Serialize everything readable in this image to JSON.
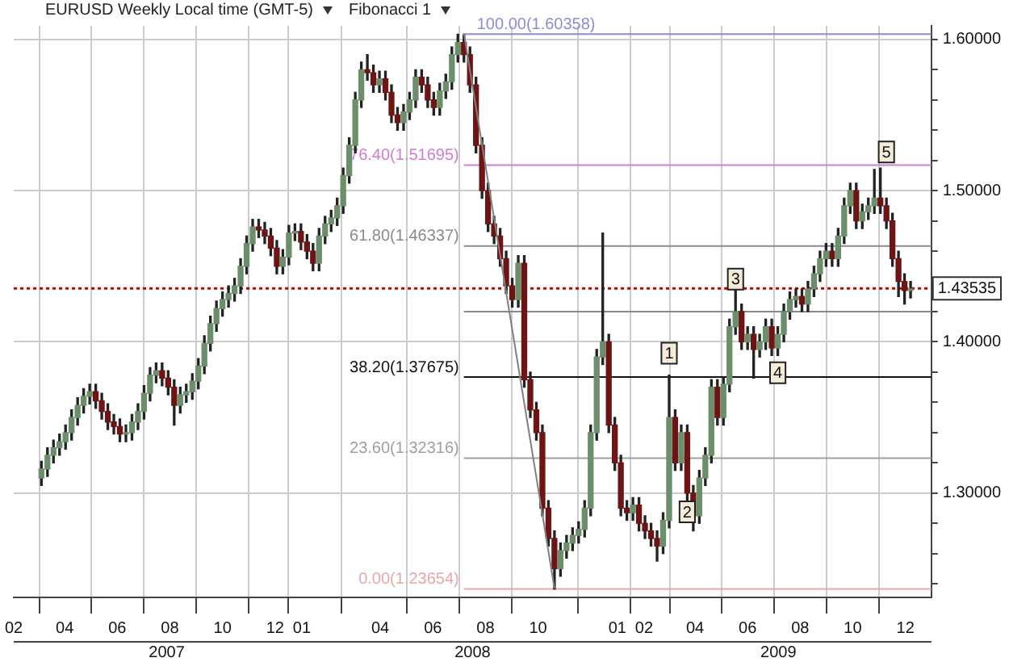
{
  "chart_data": {
    "type": "candlestick",
    "title": "EURUSD Weekly Local time (GMT-5)",
    "subtitle": "Fibonacci 1",
    "x": [
      "2007-03-05",
      "2007-03-12",
      "2007-03-19",
      "2007-03-26",
      "2007-04-02",
      "2007-04-09",
      "2007-04-16",
      "2007-04-23",
      "2007-04-30",
      "2007-05-07",
      "2007-05-14",
      "2007-05-21",
      "2007-05-28",
      "2007-06-04",
      "2007-06-11",
      "2007-06-18",
      "2007-06-25",
      "2007-07-02",
      "2007-07-09",
      "2007-07-16",
      "2007-07-23",
      "2007-07-30",
      "2007-08-06",
      "2007-08-13",
      "2007-08-20",
      "2007-08-27",
      "2007-09-03",
      "2007-09-10",
      "2007-09-17",
      "2007-09-24",
      "2007-10-01",
      "2007-10-08",
      "2007-10-15",
      "2007-10-22",
      "2007-10-29",
      "2007-11-05",
      "2007-11-12",
      "2007-11-19",
      "2007-11-26",
      "2007-12-03",
      "2007-12-10",
      "2007-12-17",
      "2007-12-24",
      "2007-12-31",
      "2008-01-07",
      "2008-01-14",
      "2008-01-21",
      "2008-01-28",
      "2008-02-04",
      "2008-02-11",
      "2008-02-18",
      "2008-02-25",
      "2008-03-03",
      "2008-03-10",
      "2008-03-17",
      "2008-03-24",
      "2008-03-31",
      "2008-04-07",
      "2008-04-14",
      "2008-04-21",
      "2008-04-28",
      "2008-05-05",
      "2008-05-12",
      "2008-05-19",
      "2008-05-26",
      "2008-06-02",
      "2008-06-09",
      "2008-06-16",
      "2008-06-23",
      "2008-06-30",
      "2008-07-07",
      "2008-07-14",
      "2008-07-21",
      "2008-07-28",
      "2008-08-04",
      "2008-08-11",
      "2008-08-18",
      "2008-08-25",
      "2008-09-01",
      "2008-09-08",
      "2008-09-15",
      "2008-09-22",
      "2008-09-29",
      "2008-10-06",
      "2008-10-13",
      "2008-10-20",
      "2008-10-27",
      "2008-11-03",
      "2008-11-10",
      "2008-11-17",
      "2008-11-24",
      "2008-12-01",
      "2008-12-08",
      "2008-12-15",
      "2008-12-22",
      "2008-12-29",
      "2009-01-05",
      "2009-01-12",
      "2009-01-19",
      "2009-01-26",
      "2009-02-02",
      "2009-02-09",
      "2009-02-16",
      "2009-02-23",
      "2009-03-02",
      "2009-03-09",
      "2009-03-16",
      "2009-03-23",
      "2009-03-30",
      "2009-04-06",
      "2009-04-13",
      "2009-04-20",
      "2009-04-27",
      "2009-05-04",
      "2009-05-11",
      "2009-05-18",
      "2009-05-25",
      "2009-06-01",
      "2009-06-08",
      "2009-06-15",
      "2009-06-22",
      "2009-06-29",
      "2009-07-06",
      "2009-07-13",
      "2009-07-20",
      "2009-07-27",
      "2009-08-03",
      "2009-08-10",
      "2009-08-17",
      "2009-08-24",
      "2009-08-31",
      "2009-09-07",
      "2009-09-14",
      "2009-09-21",
      "2009-09-28",
      "2009-10-05",
      "2009-10-12",
      "2009-10-19",
      "2009-10-26",
      "2009-11-02",
      "2009-11-09",
      "2009-11-16",
      "2009-11-23",
      "2009-11-30",
      "2009-12-07"
    ],
    "ohlc": [
      [
        1.31,
        1.321,
        1.305,
        1.316
      ],
      [
        1.316,
        1.33,
        1.311,
        1.325
      ],
      [
        1.325,
        1.335,
        1.32,
        1.33
      ],
      [
        1.33,
        1.339,
        1.325,
        1.334
      ],
      [
        1.334,
        1.345,
        1.329,
        1.34
      ],
      [
        1.34,
        1.355,
        1.335,
        1.35
      ],
      [
        1.35,
        1.363,
        1.345,
        1.358
      ],
      [
        1.358,
        1.369,
        1.353,
        1.364
      ],
      [
        1.364,
        1.372,
        1.359,
        1.367
      ],
      [
        1.367,
        1.372,
        1.356,
        1.361
      ],
      [
        1.361,
        1.366,
        1.349,
        1.354
      ],
      [
        1.354,
        1.359,
        1.342,
        1.347
      ],
      [
        1.347,
        1.352,
        1.339,
        1.344
      ],
      [
        1.344,
        1.349,
        1.334,
        1.339
      ],
      [
        1.339,
        1.345,
        1.334,
        1.34
      ],
      [
        1.34,
        1.352,
        1.335,
        1.347
      ],
      [
        1.347,
        1.359,
        1.342,
        1.354
      ],
      [
        1.354,
        1.371,
        1.349,
        1.366
      ],
      [
        1.366,
        1.383,
        1.361,
        1.378
      ],
      [
        1.378,
        1.386,
        1.373,
        1.381
      ],
      [
        1.381,
        1.386,
        1.371,
        1.376
      ],
      [
        1.376,
        1.381,
        1.365,
        1.37
      ],
      [
        1.37,
        1.375,
        1.345,
        1.358
      ],
      [
        1.358,
        1.37,
        1.353,
        1.365
      ],
      [
        1.365,
        1.372,
        1.36,
        1.367
      ],
      [
        1.367,
        1.379,
        1.362,
        1.374
      ],
      [
        1.374,
        1.389,
        1.369,
        1.384
      ],
      [
        1.384,
        1.404,
        1.379,
        1.399
      ],
      [
        1.399,
        1.417,
        1.394,
        1.412
      ],
      [
        1.412,
        1.427,
        1.407,
        1.422
      ],
      [
        1.422,
        1.433,
        1.417,
        1.428
      ],
      [
        1.428,
        1.437,
        1.423,
        1.432
      ],
      [
        1.432,
        1.442,
        1.427,
        1.437
      ],
      [
        1.437,
        1.455,
        1.432,
        1.45
      ],
      [
        1.45,
        1.47,
        1.445,
        1.465
      ],
      [
        1.465,
        1.481,
        1.46,
        1.476
      ],
      [
        1.476,
        1.481,
        1.469,
        1.474
      ],
      [
        1.474,
        1.479,
        1.465,
        1.47
      ],
      [
        1.47,
        1.475,
        1.457,
        1.462
      ],
      [
        1.462,
        1.467,
        1.445,
        1.45
      ],
      [
        1.45,
        1.461,
        1.445,
        1.456
      ],
      [
        1.456,
        1.477,
        1.451,
        1.472
      ],
      [
        1.472,
        1.478,
        1.467,
        1.473
      ],
      [
        1.473,
        1.478,
        1.461,
        1.466
      ],
      [
        1.466,
        1.471,
        1.455,
        1.46
      ],
      [
        1.46,
        1.465,
        1.447,
        1.452
      ],
      [
        1.452,
        1.475,
        1.447,
        1.47
      ],
      [
        1.47,
        1.483,
        1.465,
        1.478
      ],
      [
        1.478,
        1.487,
        1.473,
        1.482
      ],
      [
        1.482,
        1.495,
        1.477,
        1.49
      ],
      [
        1.49,
        1.515,
        1.485,
        1.51
      ],
      [
        1.51,
        1.535,
        1.505,
        1.53
      ],
      [
        1.53,
        1.565,
        1.525,
        1.56
      ],
      [
        1.56,
        1.585,
        1.555,
        1.58
      ],
      [
        1.58,
        1.59,
        1.573,
        1.578
      ],
      [
        1.578,
        1.583,
        1.565,
        1.57
      ],
      [
        1.57,
        1.579,
        1.565,
        1.574
      ],
      [
        1.574,
        1.579,
        1.56,
        1.565
      ],
      [
        1.565,
        1.57,
        1.545,
        1.55
      ],
      [
        1.55,
        1.555,
        1.54,
        1.545
      ],
      [
        1.545,
        1.557,
        1.54,
        1.552
      ],
      [
        1.552,
        1.565,
        1.547,
        1.56
      ],
      [
        1.56,
        1.58,
        1.555,
        1.575
      ],
      [
        1.575,
        1.58,
        1.565,
        1.57
      ],
      [
        1.57,
        1.575,
        1.555,
        1.56
      ],
      [
        1.56,
        1.565,
        1.55,
        1.555
      ],
      [
        1.555,
        1.571,
        1.55,
        1.566
      ],
      [
        1.566,
        1.577,
        1.561,
        1.572
      ],
      [
        1.572,
        1.595,
        1.567,
        1.59
      ],
      [
        1.59,
        1.6035,
        1.585,
        1.598
      ],
      [
        1.598,
        1.603,
        1.585,
        1.59
      ],
      [
        1.59,
        1.595,
        1.565,
        1.57
      ],
      [
        1.57,
        1.575,
        1.525,
        1.53
      ],
      [
        1.53,
        1.535,
        1.495,
        1.5
      ],
      [
        1.5,
        1.505,
        1.473,
        1.478
      ],
      [
        1.478,
        1.483,
        1.465,
        1.47
      ],
      [
        1.47,
        1.475,
        1.45,
        1.455
      ],
      [
        1.455,
        1.46,
        1.432,
        1.437
      ],
      [
        1.437,
        1.442,
        1.423,
        1.428
      ],
      [
        1.428,
        1.457,
        1.423,
        1.452
      ],
      [
        1.452,
        1.457,
        1.37,
        1.375
      ],
      [
        1.375,
        1.38,
        1.35,
        1.355
      ],
      [
        1.355,
        1.36,
        1.335,
        1.34
      ],
      [
        1.34,
        1.345,
        1.285,
        1.29
      ],
      [
        1.29,
        1.295,
        1.265,
        1.27
      ],
      [
        1.27,
        1.275,
        1.2365,
        1.25
      ],
      [
        1.25,
        1.267,
        1.245,
        1.262
      ],
      [
        1.262,
        1.272,
        1.257,
        1.267
      ],
      [
        1.267,
        1.277,
        1.262,
        1.272
      ],
      [
        1.272,
        1.281,
        1.267,
        1.276
      ],
      [
        1.276,
        1.295,
        1.271,
        1.29
      ],
      [
        1.29,
        1.345,
        1.285,
        1.34
      ],
      [
        1.34,
        1.395,
        1.335,
        1.39
      ],
      [
        1.39,
        1.472,
        1.385,
        1.4
      ],
      [
        1.4,
        1.405,
        1.34,
        1.345
      ],
      [
        1.345,
        1.35,
        1.315,
        1.32
      ],
      [
        1.32,
        1.325,
        1.285,
        1.29
      ],
      [
        1.29,
        1.295,
        1.282,
        1.287
      ],
      [
        1.287,
        1.297,
        1.282,
        1.292
      ],
      [
        1.292,
        1.297,
        1.275,
        1.28
      ],
      [
        1.28,
        1.285,
        1.27,
        1.275
      ],
      [
        1.275,
        1.28,
        1.265,
        1.27
      ],
      [
        1.27,
        1.275,
        1.255,
        1.265
      ],
      [
        1.265,
        1.287,
        1.26,
        1.282
      ],
      [
        1.282,
        1.378,
        1.277,
        1.35
      ],
      [
        1.35,
        1.355,
        1.315,
        1.32
      ],
      [
        1.32,
        1.345,
        1.315,
        1.34
      ],
      [
        1.34,
        1.345,
        1.295,
        1.3
      ],
      [
        1.3,
        1.305,
        1.275,
        1.285
      ],
      [
        1.285,
        1.315,
        1.28,
        1.31
      ],
      [
        1.31,
        1.33,
        1.305,
        1.325
      ],
      [
        1.325,
        1.375,
        1.32,
        1.37
      ],
      [
        1.37,
        1.375,
        1.345,
        1.35
      ],
      [
        1.35,
        1.377,
        1.345,
        1.372
      ],
      [
        1.372,
        1.415,
        1.367,
        1.41
      ],
      [
        1.41,
        1.436,
        1.405,
        1.42
      ],
      [
        1.42,
        1.425,
        1.395,
        1.4
      ],
      [
        1.4,
        1.41,
        1.395,
        1.405
      ],
      [
        1.405,
        1.41,
        1.376,
        1.395
      ],
      [
        1.395,
        1.405,
        1.39,
        1.4
      ],
      [
        1.4,
        1.415,
        1.395,
        1.41
      ],
      [
        1.41,
        1.415,
        1.391,
        1.396
      ],
      [
        1.396,
        1.41,
        1.391,
        1.405
      ],
      [
        1.405,
        1.425,
        1.4,
        1.42
      ],
      [
        1.42,
        1.433,
        1.415,
        1.428
      ],
      [
        1.428,
        1.435,
        1.423,
        1.43
      ],
      [
        1.43,
        1.435,
        1.42,
        1.425
      ],
      [
        1.425,
        1.44,
        1.42,
        1.435
      ],
      [
        1.435,
        1.45,
        1.43,
        1.445
      ],
      [
        1.445,
        1.46,
        1.44,
        1.455
      ],
      [
        1.455,
        1.465,
        1.45,
        1.46
      ],
      [
        1.46,
        1.465,
        1.45,
        1.455
      ],
      [
        1.455,
        1.475,
        1.45,
        1.47
      ],
      [
        1.47,
        1.495,
        1.465,
        1.49
      ],
      [
        1.49,
        1.505,
        1.485,
        1.5
      ],
      [
        1.5,
        1.505,
        1.475,
        1.48
      ],
      [
        1.48,
        1.491,
        1.475,
        1.486
      ],
      [
        1.486,
        1.495,
        1.481,
        1.49
      ],
      [
        1.49,
        1.514,
        1.485,
        1.495
      ],
      [
        1.495,
        1.515,
        1.485,
        1.49
      ],
      [
        1.49,
        1.495,
        1.475,
        1.48
      ],
      [
        1.48,
        1.485,
        1.45,
        1.455
      ],
      [
        1.455,
        1.46,
        1.43,
        1.44
      ],
      [
        1.44,
        1.445,
        1.425,
        1.434
      ],
      [
        1.434,
        1.44,
        1.429,
        1.435
      ]
    ],
    "colors": [
      "#6b8f6b",
      "#6b8f6b",
      "#6b8f6b",
      "#6b8f6b",
      "#6b8f6b",
      "#6b8f6b",
      "#6b8f6b",
      "#6b8f6b",
      "#6b8f6b",
      "#6e1414",
      "#6e1414",
      "#6e1414",
      "#6e1414",
      "#6e1414",
      "#6b8f6b",
      "#6b8f6b",
      "#6b8f6b",
      "#6b8f6b",
      "#6b8f6b",
      "#6b8f6b",
      "#6e1414",
      "#6e1414",
      "#6e1414",
      "#6b8f6b",
      "#6b8f6b",
      "#6b8f6b",
      "#6b8f6b",
      "#6b8f6b",
      "#6b8f6b",
      "#6b8f6b",
      "#6b8f6b",
      "#6b8f6b",
      "#6b8f6b",
      "#6b8f6b",
      "#6b8f6b",
      "#6b8f6b",
      "#6e1414",
      "#6e1414",
      "#6e1414",
      "#6e1414",
      "#6b8f6b",
      "#6b8f6b",
      "#6b8f6b",
      "#6e1414",
      "#6e1414",
      "#6e1414",
      "#6b8f6b",
      "#6b8f6b",
      "#6b8f6b",
      "#6b8f6b",
      "#6b8f6b",
      "#6b8f6b",
      "#6b8f6b",
      "#6b8f6b",
      "#6e1414",
      "#6e1414",
      "#6b8f6b",
      "#6e1414",
      "#6e1414",
      "#6e1414",
      "#6b8f6b",
      "#6b8f6b",
      "#6b8f6b",
      "#6e1414",
      "#6e1414",
      "#6e1414",
      "#6b8f6b",
      "#6b8f6b",
      "#6b8f6b",
      "#6b8f6b",
      "#6e1414",
      "#6e1414",
      "#6e1414",
      "#6e1414",
      "#6e1414",
      "#6e1414",
      "#6e1414",
      "#6e1414",
      "#6e1414",
      "#6b8f6b",
      "#6e1414",
      "#6e1414",
      "#6e1414",
      "#6e1414",
      "#6e1414",
      "#6e1414",
      "#6b8f6b",
      "#6b8f6b",
      "#6b8f6b",
      "#6b8f6b",
      "#6b8f6b",
      "#6b8f6b",
      "#6b8f6b",
      "#6b8f6b",
      "#6e1414",
      "#6e1414",
      "#6e1414",
      "#6e1414",
      "#6b8f6b",
      "#6e1414",
      "#6e1414",
      "#6e1414",
      "#6e1414",
      "#6b8f6b",
      "#6b8f6b",
      "#6e1414",
      "#6b8f6b",
      "#6e1414",
      "#6e1414",
      "#6b8f6b",
      "#6b8f6b",
      "#6b8f6b",
      "#6e1414",
      "#6b8f6b",
      "#6b8f6b",
      "#6b8f6b",
      "#6e1414",
      "#6b8f6b",
      "#6e1414",
      "#6b8f6b",
      "#6b8f6b",
      "#6e1414",
      "#6b8f6b",
      "#6b8f6b",
      "#6b8f6b",
      "#6b8f6b",
      "#6e1414",
      "#6b8f6b",
      "#6b8f6b",
      "#6b8f6b",
      "#6b8f6b",
      "#6e1414",
      "#6b8f6b",
      "#6b8f6b",
      "#6b8f6b",
      "#6e1414",
      "#6b8f6b",
      "#6b8f6b",
      "#6b8f6b",
      "#6e1414",
      "#6e1414",
      "#6e1414",
      "#6e1414",
      "#6e1414",
      "#6b8f6b"
    ],
    "series": [
      {
        "type": "line",
        "x": [
          "2008-07-07",
          "2008-10-20"
        ],
        "values": [
          1.604,
          1.237
        ],
        "color": "#808080"
      }
    ],
    "xlim": [
      "2007-02-01",
      "2009-12-31"
    ],
    "xticks": [
      {
        "value": "2007-02",
        "label": "02"
      },
      {
        "value": "2007-04",
        "label": "04"
      },
      {
        "value": "2007-06",
        "label": "06"
      },
      {
        "value": "2007-08",
        "label": "08"
      },
      {
        "value": "2007-10",
        "label": "10"
      },
      {
        "value": "2007-12",
        "label": "12"
      },
      {
        "value": "2008-01",
        "label": "01"
      },
      {
        "value": "2008-04",
        "label": "04"
      },
      {
        "value": "2008-06",
        "label": "06"
      },
      {
        "value": "2008-08",
        "label": "08"
      },
      {
        "value": "2008-10",
        "label": "10"
      },
      {
        "value": "2009-01",
        "label": "01"
      },
      {
        "value": "2009-02",
        "label": "02"
      },
      {
        "value": "2009-04",
        "label": "04"
      },
      {
        "value": "2009-06",
        "label": "06"
      },
      {
        "value": "2009-08",
        "label": "08"
      },
      {
        "value": "2009-10",
        "label": "10"
      },
      {
        "value": "2009-12",
        "label": "12"
      }
    ],
    "ylim": [
      1.231,
      1.609
    ],
    "yticks": [
      {
        "value": 1.24,
        "label": null
      },
      {
        "value": 1.26,
        "label": null
      },
      {
        "value": 1.28,
        "label": null
      },
      {
        "value": 1.3,
        "label": "1.30000"
      },
      {
        "value": 1.32,
        "label": null
      },
      {
        "value": 1.34,
        "label": null
      },
      {
        "value": 1.36,
        "label": null
      },
      {
        "value": 1.38,
        "label": null
      },
      {
        "value": 1.4,
        "label": "1.40000"
      },
      {
        "value": 1.42,
        "label": null
      },
      {
        "value": 1.44,
        "label": null
      },
      {
        "value": 1.46,
        "label": null
      },
      {
        "value": 1.48,
        "label": null
      },
      {
        "value": 1.5,
        "label": "1.50000"
      },
      {
        "value": 1.52,
        "label": null
      },
      {
        "value": 1.54,
        "label": null
      },
      {
        "value": 1.56,
        "label": null
      },
      {
        "value": 1.58,
        "label": null
      },
      {
        "value": 1.6,
        "label": "1.60000"
      }
    ],
    "grid": true,
    "ref_lines": [
      {
        "axis": "y",
        "value": 1.60358,
        "label": "100.00(1.60358)",
        "color": "#8c8cd8"
      },
      {
        "axis": "y",
        "value": 1.51695,
        "label": "76.40(1.51695)",
        "color": "#d47ad4"
      },
      {
        "axis": "y",
        "value": 1.46337,
        "label": "61.80(1.46337)",
        "color": "#8a8a8a"
      },
      {
        "axis": "y",
        "value": 1.42006,
        "color": "#8a8a8a"
      },
      {
        "axis": "y",
        "value": 1.37675,
        "label": "38.20(1.37675)",
        "color": "#111111"
      },
      {
        "axis": "y",
        "value": 1.32316,
        "label": "23.60(1.32316)",
        "color": "#a0a0a0"
      },
      {
        "axis": "y",
        "value": 1.23654,
        "label": "0.00(1.23654)",
        "color": "#e8a8a8"
      },
      {
        "axis": "y",
        "value": 1.43535,
        "label": "1.43535",
        "color": "#c00000",
        "line_style": "dotted"
      }
    ],
    "annotations": [
      {
        "text": "1",
        "x": "2009-03-02",
        "y": 1.392
      },
      {
        "text": "2",
        "x": "2009-03-23",
        "y": 1.287
      },
      {
        "text": "3",
        "x": "2009-05-18",
        "y": 1.441
      },
      {
        "text": "4",
        "x": "2009-07-06",
        "y": 1.379
      },
      {
        "text": "5",
        "x": "2009-11-09",
        "y": 1.525
      },
      "2007",
      "2008",
      "2009"
    ]
  }
}
